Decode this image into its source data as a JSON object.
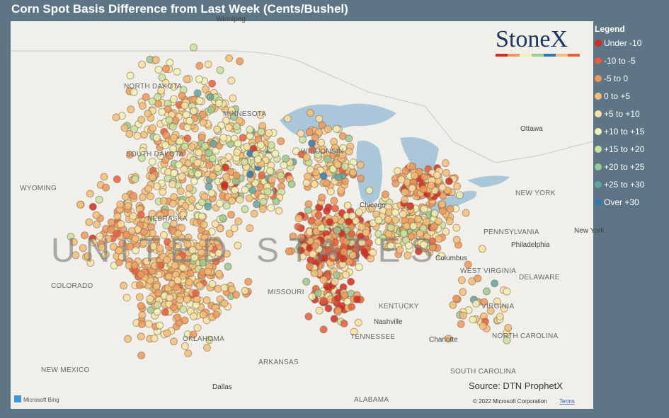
{
  "header": {
    "title": "Corn Spot Basis Difference from Last Week (Cents/Bushel)"
  },
  "legend": {
    "title": "Legend",
    "items": [
      {
        "label": "Under -10",
        "color": "#d42a20"
      },
      {
        "label": "-10 to -5",
        "color": "#e85d3a"
      },
      {
        "label": "-5 to 0",
        "color": "#f0965a"
      },
      {
        "label": "0 to +5",
        "color": "#f5bd78"
      },
      {
        "label": "+5 to +10",
        "color": "#f9e0a2"
      },
      {
        "label": "+10 to +15",
        "color": "#eef2b4"
      },
      {
        "label": "+15 to +20",
        "color": "#c6e3a0"
      },
      {
        "label": "+20 to +25",
        "color": "#97cb92"
      },
      {
        "label": "+25 to +30",
        "color": "#62a4a2"
      },
      {
        "label": "Over +30",
        "color": "#2e78b0"
      }
    ]
  },
  "map": {
    "logo": "StoneX",
    "source": "Source: DTN ProphetX",
    "attribution": "Microsoft Bing",
    "copyright": "© 2022 Microsoft Corporation",
    "terms": "Terms",
    "labels": [
      "Winnipeg",
      "NORTH DAKOTA",
      "MINNESOTA",
      "SOUTH DAKOTA",
      "WYOMING",
      "WISCONSIN",
      "Chicago",
      "NEBRASKA",
      "UNITED STATES",
      "COLORADO",
      "MISSOURI",
      "KENTUCKY",
      "Nashville",
      "TENNESSEE",
      "OKLAHOMA",
      "ARKANSAS",
      "NEW MEXICO",
      "Dallas",
      "ALABAMA",
      "Charlotte",
      "NORTH CAROLINA",
      "SOUTH CAROLINA",
      "VIRGINIA",
      "WEST VIRGINIA",
      "Columbus",
      "PENNSYLVANIA",
      "Philadelphia",
      "NEW YORK",
      "Ottawa",
      "DELAWARE",
      "New York"
    ]
  }
}
